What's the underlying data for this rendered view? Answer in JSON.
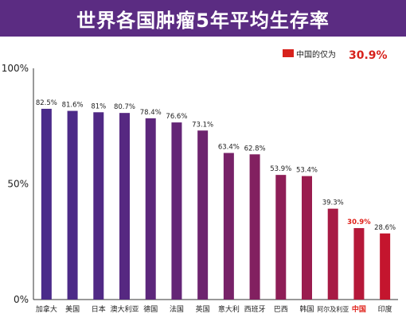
{
  "title": "世界各国肿瘤5年平均生存率",
  "legend_note": {
    "label": "中国的仅为",
    "value": "30.9%",
    "flag_icon": "china-flag-icon",
    "flag_color": "#d7221c",
    "value_color": "#d7221c"
  },
  "colors": {
    "title_bg": "#5b2c82",
    "bar_gradient_start": "#4a2a8a",
    "bar_gradient_end": "#c4152e",
    "highlight_label": "#e0221b",
    "axis": "#333333"
  },
  "chart_data": {
    "type": "bar",
    "title": "世界各国肿瘤5年平均生存率",
    "categories": [
      "加拿大",
      "美国",
      "日本",
      "澳大利亚",
      "德国",
      "法国",
      "英国",
      "意大利",
      "西班牙",
      "巴西",
      "韩国",
      "阿尔及利亚",
      "中国",
      "印度"
    ],
    "values": [
      82.5,
      81.6,
      81,
      80.7,
      78.4,
      76.6,
      73.1,
      63.4,
      62.8,
      53.9,
      53.4,
      39.3,
      30.9,
      28.6
    ],
    "value_labels": [
      "82.5%",
      "81.6%",
      "81%",
      "80.7%",
      "78.4%",
      "76.6%",
      "73.1%",
      "63.4%",
      "62.8%",
      "53.9%",
      "53.4%",
      "39.3%",
      "30.9%",
      "28.6%"
    ],
    "highlight": "中国",
    "ylim": [
      0,
      100
    ],
    "yticks": [
      0,
      50,
      100
    ],
    "ytick_labels": [
      "0%",
      "50%",
      "100%"
    ],
    "xlabel": "",
    "ylabel": "",
    "grid": false,
    "legend": "top-right"
  }
}
